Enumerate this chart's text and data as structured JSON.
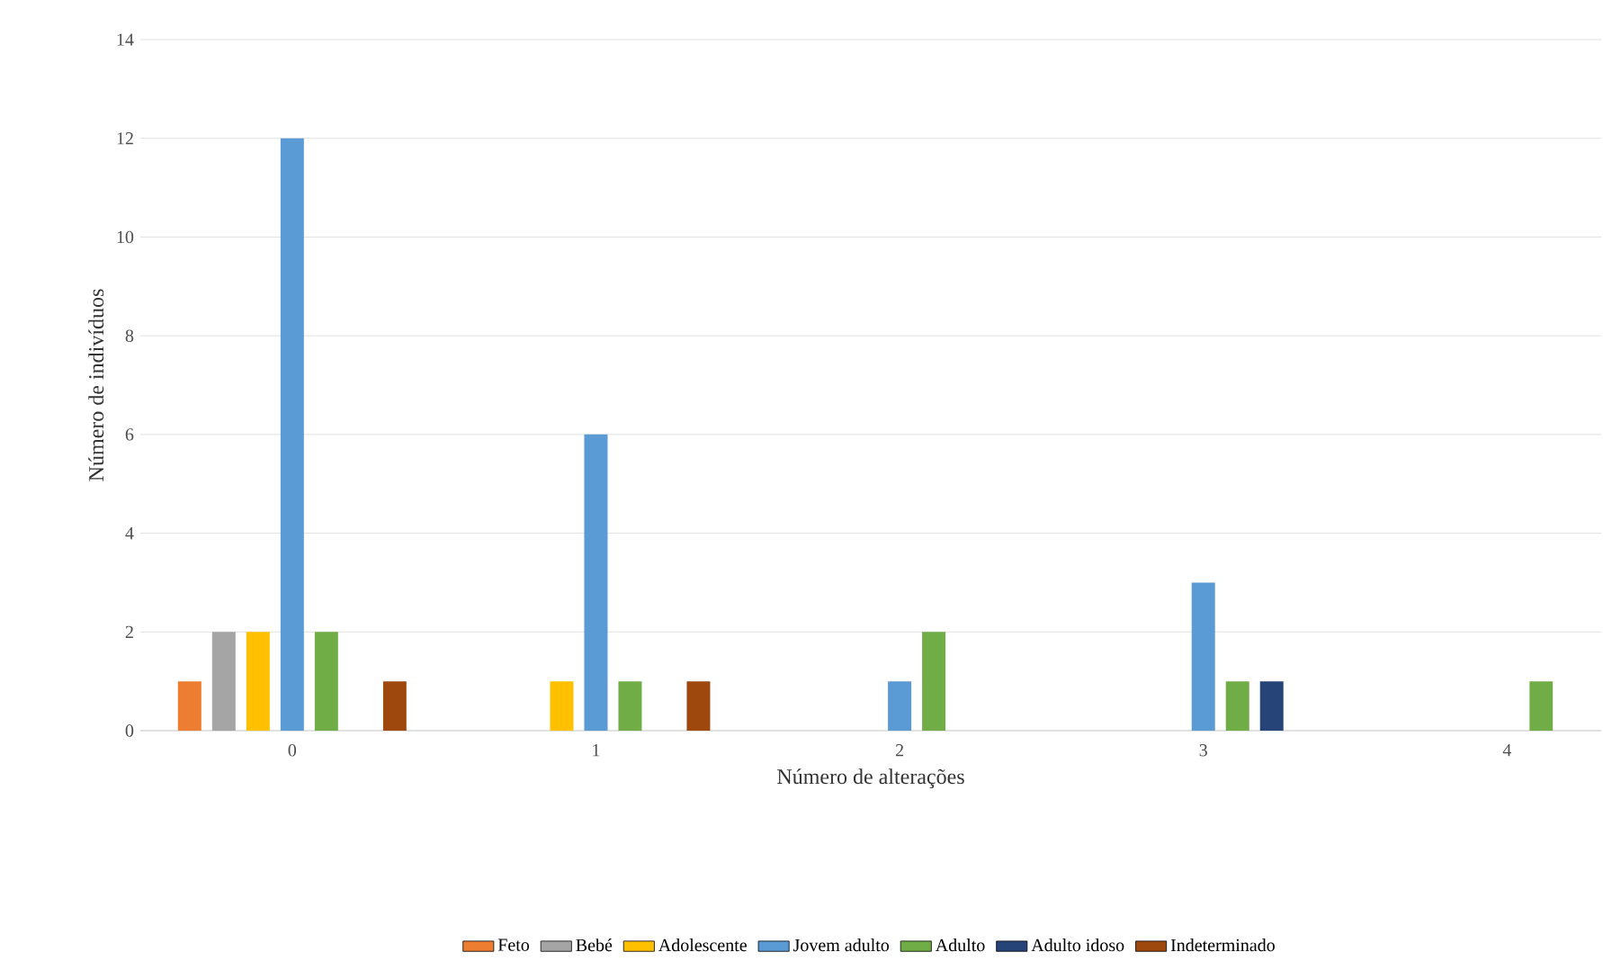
{
  "chart_data": {
    "type": "bar",
    "xlabel": "Número de alterações",
    "ylabel": "Número de indivíduos",
    "categories": [
      "0",
      "1",
      "2",
      "3",
      "4"
    ],
    "series": [
      {
        "name": "Feto",
        "color": "#ed7d31",
        "values": [
          1,
          null,
          null,
          null,
          null
        ]
      },
      {
        "name": "Bebé",
        "color": "#a5a5a5",
        "values": [
          2,
          null,
          null,
          null,
          null
        ]
      },
      {
        "name": "Adolescente",
        "color": "#ffc000",
        "values": [
          2,
          1,
          null,
          null,
          null
        ]
      },
      {
        "name": "Jovem adulto",
        "color": "#5b9bd5",
        "values": [
          12,
          6,
          1,
          3,
          null
        ]
      },
      {
        "name": "Adulto",
        "color": "#70ad47",
        "values": [
          2,
          1,
          2,
          1,
          1
        ]
      },
      {
        "name": "Adulto idoso",
        "color": "#264478",
        "values": [
          null,
          null,
          null,
          1,
          null
        ]
      },
      {
        "name": "Indeterminado",
        "color": "#9e480e",
        "values": [
          1,
          1,
          null,
          null,
          null
        ]
      }
    ],
    "ylim": [
      0,
      14
    ],
    "yticks": [
      0,
      2,
      4,
      6,
      8,
      10,
      12,
      14
    ],
    "grid": "y",
    "legend": "bottom"
  }
}
